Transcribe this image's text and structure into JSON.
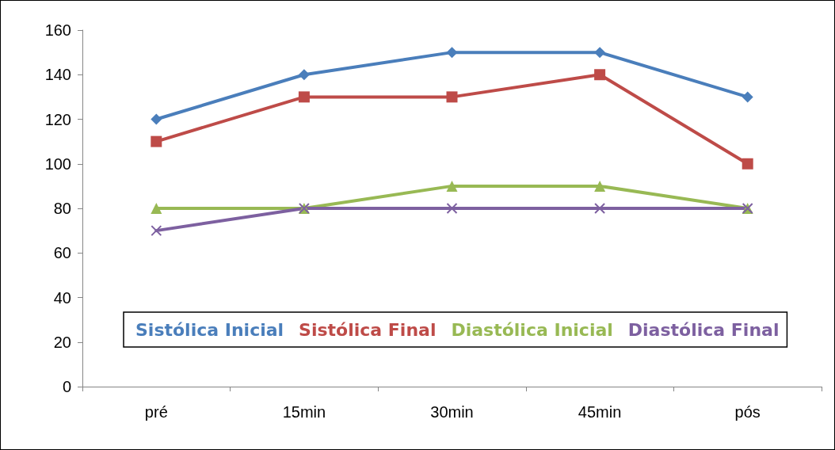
{
  "chart_data": {
    "type": "line",
    "categories": [
      "pré",
      "15min",
      "30min",
      "45min",
      "pós"
    ],
    "series": [
      {
        "name": "Sistólica Inicial",
        "color": "#4a7ebb",
        "marker": "diamond",
        "values": [
          120,
          140,
          150,
          150,
          130
        ]
      },
      {
        "name": "Sistólica Final",
        "color": "#be4b48",
        "marker": "square",
        "values": [
          110,
          130,
          130,
          140,
          100
        ]
      },
      {
        "name": "Diastólica Inicial",
        "color": "#98b954",
        "marker": "triangle",
        "values": [
          80,
          80,
          90,
          90,
          80
        ]
      },
      {
        "name": "Diastólica Final",
        "color": "#7d60a0",
        "marker": "cross",
        "values": [
          70,
          80,
          80,
          80,
          80
        ]
      }
    ],
    "ylim": [
      0,
      160
    ],
    "yticks": [
      0,
      20,
      40,
      60,
      80,
      100,
      120,
      140,
      160
    ],
    "grid": false,
    "legend": "bottom",
    "line_style": "solid"
  }
}
